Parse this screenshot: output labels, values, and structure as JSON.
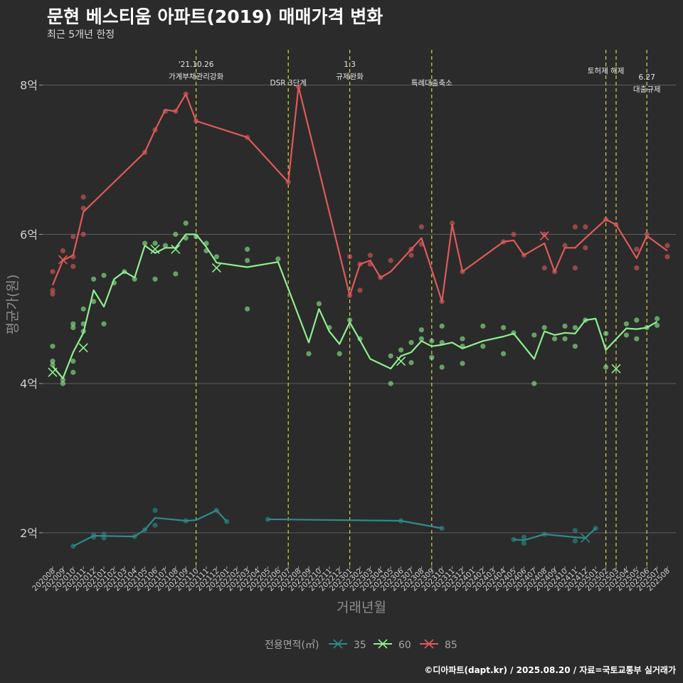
{
  "chart_data": {
    "type": "line",
    "title": "문현 베스티움 아파트(2019) 매매가격 변화",
    "subtitle": "최근 5개년 한정",
    "xlabel": "거래년월",
    "ylabel": "평균가(원)",
    "ylim": [
      1.55,
      8.55
    ],
    "yticks": [
      {
        "v": 2,
        "label": "2억"
      },
      {
        "v": 4,
        "label": "4억"
      },
      {
        "v": 6,
        "label": "6억"
      },
      {
        "v": 8,
        "label": "8억"
      }
    ],
    "categories": [
      "202008",
      "202009",
      "202010",
      "202011",
      "202012",
      "202101",
      "202102",
      "202103",
      "202104",
      "202105",
      "202106",
      "202107",
      "202108",
      "202109",
      "202110",
      "202111",
      "202112",
      "202201",
      "202202",
      "202203",
      "202204",
      "202205",
      "202206",
      "202207",
      "202208",
      "202209",
      "202210",
      "202211",
      "202212",
      "202301",
      "202302",
      "202303",
      "202304",
      "202305",
      "202306",
      "202307",
      "202308",
      "202309",
      "202310",
      "202311",
      "202312",
      "202401",
      "202402",
      "202403",
      "202404",
      "202405",
      "202406",
      "202407",
      "202408",
      "202409",
      "202410",
      "202411",
      "202412",
      "202501",
      "202502",
      "202503",
      "202504",
      "202505",
      "202506",
      "202507",
      "202508"
    ],
    "grid": true,
    "legend": {
      "title": "전용면적(㎡)",
      "position": "bottom"
    },
    "events": [
      {
        "month": "202110",
        "lines": [
          "'21.10.26",
          "가계부채관리강화"
        ]
      },
      {
        "month": "202207",
        "lines": [
          "DSR 3단계"
        ]
      },
      {
        "month": "202301",
        "lines": [
          "1.3",
          "규제완화"
        ]
      },
      {
        "month": "202309",
        "lines": [
          "특례대출축소"
        ]
      },
      {
        "month": "202502",
        "lines": [
          "토허제 해제"
        ]
      },
      {
        "month": "202503",
        "lines": [
          ""
        ]
      },
      {
        "month": "202506",
        "lines": [
          "6.27",
          "대출규제"
        ]
      }
    ],
    "series": [
      {
        "name": "35",
        "color": "#2e8b8b",
        "line": [
          [
            "202010",
            1.82
          ],
          [
            "202012",
            1.96
          ],
          [
            "202104",
            1.95
          ],
          [
            "202105",
            2.04
          ],
          [
            "202106",
            2.2
          ],
          [
            "202109",
            2.16
          ],
          [
            "202110",
            2.17
          ],
          [
            "202112",
            2.3
          ],
          [
            "202201",
            2.15
          ],
          null,
          [
            "202205",
            2.18
          ],
          [
            "202306",
            2.16
          ],
          [
            "202310",
            2.06
          ],
          null,
          [
            "202405",
            1.91
          ],
          [
            "202406",
            1.9
          ],
          [
            "202408",
            1.98
          ],
          [
            "202411",
            1.94
          ],
          [
            "202412",
            1.93
          ],
          [
            "202501",
            2.06
          ]
        ],
        "points": [
          [
            "202010",
            1.82
          ],
          [
            "202012",
            1.94
          ],
          [
            "202012",
            1.97
          ],
          [
            "202101",
            1.93
          ],
          [
            "202101",
            1.98
          ],
          [
            "202104",
            1.95
          ],
          [
            "202105",
            2.04
          ],
          [
            "202106",
            2.1
          ],
          [
            "202106",
            2.3
          ],
          [
            "202109",
            2.16
          ],
          [
            "202112",
            2.3
          ],
          [
            "202201",
            2.15
          ],
          [
            "202205",
            2.18
          ],
          [
            "202306",
            2.16
          ],
          [
            "202310",
            2.06
          ],
          [
            "202405",
            1.91
          ],
          [
            "202406",
            1.86
          ],
          [
            "202406",
            1.94
          ],
          [
            "202408",
            1.98
          ],
          [
            "202411",
            1.89
          ],
          [
            "202411",
            2.03
          ],
          [
            "202501",
            2.06
          ]
        ],
        "crosses": [
          [
            "202412",
            1.93
          ]
        ]
      },
      {
        "name": "60",
        "color": "#90ee90",
        "line": [
          [
            "202008",
            4.23
          ],
          [
            "202009",
            4.07
          ],
          [
            "202010",
            4.42
          ],
          [
            "202011",
            4.68
          ],
          [
            "202012",
            5.25
          ],
          [
            "202101",
            5.03
          ],
          [
            "202102",
            5.4
          ],
          [
            "202103",
            5.5
          ],
          [
            "202104",
            5.42
          ],
          [
            "202105",
            5.85
          ],
          [
            "202106",
            5.75
          ],
          [
            "202107",
            5.82
          ],
          [
            "202108",
            5.82
          ],
          [
            "202109",
            6.0
          ],
          [
            "202110",
            6.0
          ],
          [
            "202111",
            5.83
          ],
          [
            "202112",
            5.62
          ],
          [
            "202203",
            5.56
          ],
          [
            "202206",
            5.63
          ],
          [
            "202209",
            4.55
          ],
          [
            "202210",
            5.0
          ],
          [
            "202211",
            4.7
          ],
          [
            "202212",
            4.53
          ],
          [
            "202301",
            4.82
          ],
          [
            "202302",
            4.58
          ],
          [
            "202303",
            4.33
          ],
          [
            "202305",
            4.2
          ],
          [
            "202306",
            4.37
          ],
          [
            "202307",
            4.42
          ],
          [
            "202308",
            4.57
          ],
          [
            "202309",
            4.5
          ],
          [
            "202310",
            4.52
          ],
          [
            "202311",
            4.55
          ],
          [
            "202312",
            4.47
          ],
          [
            "202402",
            4.57
          ],
          [
            "202404",
            4.63
          ],
          [
            "202405",
            4.67
          ],
          [
            "202407",
            4.33
          ],
          [
            "202408",
            4.7
          ],
          [
            "202409",
            4.65
          ],
          [
            "202410",
            4.68
          ],
          [
            "202411",
            4.67
          ],
          [
            "202412",
            4.85
          ],
          [
            "202501",
            4.87
          ],
          [
            "202502",
            4.45
          ],
          [
            "202504",
            4.74
          ],
          [
            "202505",
            4.73
          ],
          [
            "202506",
            4.75
          ],
          [
            "202507",
            4.83
          ]
        ],
        "points": [
          [
            "202008",
            4.3
          ],
          [
            "202008",
            4.5
          ],
          [
            "202008",
            4.25
          ],
          [
            "202009",
            4.0
          ],
          [
            "202009",
            4.05
          ],
          [
            "202010",
            4.15
          ],
          [
            "202010",
            4.3
          ],
          [
            "202010",
            4.75
          ],
          [
            "202010",
            4.8
          ],
          [
            "202011",
            4.8
          ],
          [
            "202011",
            5.0
          ],
          [
            "202011",
            4.7
          ],
          [
            "202012",
            5.1
          ],
          [
            "202012",
            5.4
          ],
          [
            "202101",
            4.8
          ],
          [
            "202101",
            5.45
          ],
          [
            "202102",
            5.35
          ],
          [
            "202103",
            5.5
          ],
          [
            "202104",
            5.4
          ],
          [
            "202105",
            5.88
          ],
          [
            "202106",
            5.4
          ],
          [
            "202106",
            5.88
          ],
          [
            "202107",
            5.85
          ],
          [
            "202108",
            5.47
          ],
          [
            "202108",
            6.0
          ],
          [
            "202109",
            6.15
          ],
          [
            "202109",
            5.95
          ],
          [
            "202110",
            5.97
          ],
          [
            "202111",
            5.78
          ],
          [
            "202111",
            5.88
          ],
          [
            "202112",
            5.7
          ],
          [
            "202203",
            5.0
          ],
          [
            "202203",
            5.65
          ],
          [
            "202203",
            5.8
          ],
          [
            "202206",
            5.67
          ],
          [
            "202209",
            4.4
          ],
          [
            "202210",
            5.07
          ],
          [
            "202211",
            4.75
          ],
          [
            "202212",
            4.4
          ],
          [
            "202301",
            4.85
          ],
          [
            "202302",
            4.6
          ],
          [
            "202305",
            4.0
          ],
          [
            "202305",
            4.37
          ],
          [
            "202306",
            4.45
          ],
          [
            "202307",
            4.28
          ],
          [
            "202307",
            4.55
          ],
          [
            "202308",
            4.6
          ],
          [
            "202308",
            4.72
          ],
          [
            "202309",
            4.35
          ],
          [
            "202309",
            4.57
          ],
          [
            "202310",
            4.22
          ],
          [
            "202310",
            4.55
          ],
          [
            "202310",
            4.77
          ],
          [
            "202312",
            4.27
          ],
          [
            "202312",
            4.6
          ],
          [
            "202312",
            4.5
          ],
          [
            "202402",
            4.5
          ],
          [
            "202402",
            4.77
          ],
          [
            "202404",
            4.4
          ],
          [
            "202404",
            4.75
          ],
          [
            "202405",
            4.68
          ],
          [
            "202407",
            4.0
          ],
          [
            "202407",
            4.65
          ],
          [
            "202408",
            4.75
          ],
          [
            "202409",
            4.6
          ],
          [
            "202410",
            4.6
          ],
          [
            "202410",
            4.77
          ],
          [
            "202411",
            4.5
          ],
          [
            "202411",
            4.75
          ],
          [
            "202412",
            4.85
          ],
          [
            "202502",
            4.22
          ],
          [
            "202502",
            4.67
          ],
          [
            "202504",
            4.8
          ],
          [
            "202504",
            4.65
          ],
          [
            "202505",
            4.6
          ],
          [
            "202505",
            4.85
          ],
          [
            "202506",
            4.75
          ],
          [
            "202507",
            4.78
          ],
          [
            "202507",
            4.87
          ]
        ],
        "crosses": [
          [
            "202008",
            4.15
          ],
          [
            "202011",
            4.48
          ],
          [
            "202106",
            5.8
          ],
          [
            "202108",
            5.8
          ],
          [
            "202112",
            5.55
          ],
          [
            "202306",
            4.3
          ],
          [
            "202503",
            4.2
          ]
        ]
      },
      {
        "name": "85",
        "color": "#e05a5a",
        "line": [
          [
            "202008",
            5.32
          ],
          [
            "202009",
            5.65
          ],
          [
            "202010",
            5.72
          ],
          [
            "202011",
            6.3
          ],
          [
            "202105",
            7.1
          ],
          [
            "202106",
            7.4
          ],
          [
            "202107",
            7.67
          ],
          [
            "202108",
            7.65
          ],
          [
            "202109",
            7.88
          ],
          [
            "202110",
            7.52
          ],
          [
            "202203",
            7.3
          ],
          [
            "202207",
            6.7
          ],
          [
            "202208",
            7.98
          ],
          [
            "202301",
            5.18
          ],
          [
            "202302",
            5.6
          ],
          [
            "202303",
            5.65
          ],
          [
            "202304",
            5.42
          ],
          [
            "202305",
            5.5
          ],
          [
            "202307",
            5.8
          ],
          [
            "202308",
            5.95
          ],
          [
            "202310",
            5.1
          ],
          [
            "202311",
            6.13
          ],
          [
            "202312",
            5.5
          ],
          [
            "202404",
            5.9
          ],
          [
            "202405",
            5.92
          ],
          [
            "202406",
            5.72
          ],
          [
            "202408",
            5.88
          ],
          [
            "202409",
            5.5
          ],
          [
            "202410",
            5.82
          ],
          [
            "202411",
            5.82
          ],
          [
            "202412",
            5.95
          ],
          [
            "202502",
            6.2
          ],
          [
            "202503",
            6.13
          ],
          [
            "202505",
            5.68
          ],
          [
            "202506",
            5.98
          ],
          [
            "202508",
            5.78
          ]
        ],
        "points": [
          [
            "202008",
            5.2
          ],
          [
            "202008",
            5.25
          ],
          [
            "202008",
            5.5
          ],
          [
            "202009",
            5.78
          ],
          [
            "202010",
            5.57
          ],
          [
            "202010",
            5.7
          ],
          [
            "202010",
            5.97
          ],
          [
            "202011",
            6.0
          ],
          [
            "202011",
            6.35
          ],
          [
            "202011",
            6.5
          ],
          [
            "202105",
            7.1
          ],
          [
            "202106",
            7.4
          ],
          [
            "202107",
            7.65
          ],
          [
            "202108",
            7.65
          ],
          [
            "202109",
            7.88
          ],
          [
            "202110",
            7.52
          ],
          [
            "202203",
            7.3
          ],
          [
            "202207",
            6.7
          ],
          [
            "202208",
            7.98
          ],
          [
            "202301",
            5.18
          ],
          [
            "202301",
            5.7
          ],
          [
            "202302",
            5.25
          ],
          [
            "202302",
            5.6
          ],
          [
            "202303",
            5.72
          ],
          [
            "202303",
            5.6
          ],
          [
            "202304",
            5.42
          ],
          [
            "202305",
            5.65
          ],
          [
            "202307",
            5.72
          ],
          [
            "202307",
            5.8
          ],
          [
            "202308",
            5.87
          ],
          [
            "202308",
            6.1
          ],
          [
            "202310",
            5.1
          ],
          [
            "202311",
            6.15
          ],
          [
            "202312",
            5.5
          ],
          [
            "202404",
            5.9
          ],
          [
            "202405",
            6.0
          ],
          [
            "202406",
            5.72
          ],
          [
            "202408",
            5.55
          ],
          [
            "202408",
            6.0
          ],
          [
            "202409",
            5.5
          ],
          [
            "202410",
            5.85
          ],
          [
            "202411",
            5.55
          ],
          [
            "202411",
            6.1
          ],
          [
            "202412",
            5.82
          ],
          [
            "202412",
            6.1
          ],
          [
            "202502",
            6.2
          ],
          [
            "202503",
            6.13
          ],
          [
            "202505",
            5.55
          ],
          [
            "202505",
            5.8
          ],
          [
            "202506",
            6.0
          ],
          [
            "202508",
            5.7
          ],
          [
            "202508",
            5.85
          ]
        ],
        "crosses": [
          [
            "202009",
            5.66
          ],
          [
            "202408",
            5.98
          ]
        ]
      }
    ]
  },
  "caption": "©디아파트(dapt.kr) / 2025.08.20 / 자료=국토교통부 실거래가"
}
